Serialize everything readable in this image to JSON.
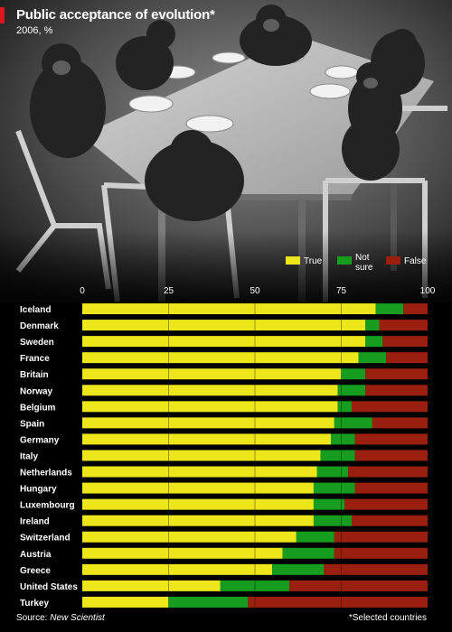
{
  "header": {
    "title": "Public acceptance of evolution*",
    "subtitle": "2006, %"
  },
  "footer": {
    "source_prefix": "Source: ",
    "source_name": "New Scientist",
    "note": "*Selected countries"
  },
  "colors": {
    "accent": "#e0141c",
    "true": "#ece61a",
    "not_sure": "#169c1e",
    "false": "#9a1f0f",
    "background": "#000000",
    "text": "#ffffff"
  },
  "chart_data": {
    "type": "bar",
    "orientation": "horizontal",
    "stacked": true,
    "title": "Public acceptance of evolution*",
    "subtitle": "2006, %",
    "xlim": [
      0,
      100
    ],
    "xticks": [
      0,
      25,
      50,
      75,
      100
    ],
    "legend_position": "top-right",
    "categories": [
      "Iceland",
      "Denmark",
      "Sweden",
      "France",
      "Britain",
      "Norway",
      "Belgium",
      "Spain",
      "Germany",
      "Italy",
      "Netherlands",
      "Hungary",
      "Luxembourg",
      "Ireland",
      "Switzerland",
      "Austria",
      "Greece",
      "United States",
      "Turkey"
    ],
    "series": [
      {
        "name": "True",
        "values": [
          85,
          82,
          82,
          80,
          75,
          74,
          74,
          73,
          72,
          69,
          68,
          67,
          67,
          67,
          62,
          58,
          55,
          40,
          25
        ]
      },
      {
        "name": "Not sure",
        "values": [
          8,
          4,
          5,
          8,
          7,
          8,
          4,
          11,
          7,
          10,
          9,
          12,
          9,
          11,
          11,
          15,
          15,
          20,
          23
        ]
      },
      {
        "name": "False",
        "values": [
          7,
          14,
          13,
          12,
          18,
          18,
          22,
          16,
          21,
          21,
          23,
          21,
          24,
          22,
          27,
          27,
          30,
          40,
          52
        ]
      }
    ]
  }
}
